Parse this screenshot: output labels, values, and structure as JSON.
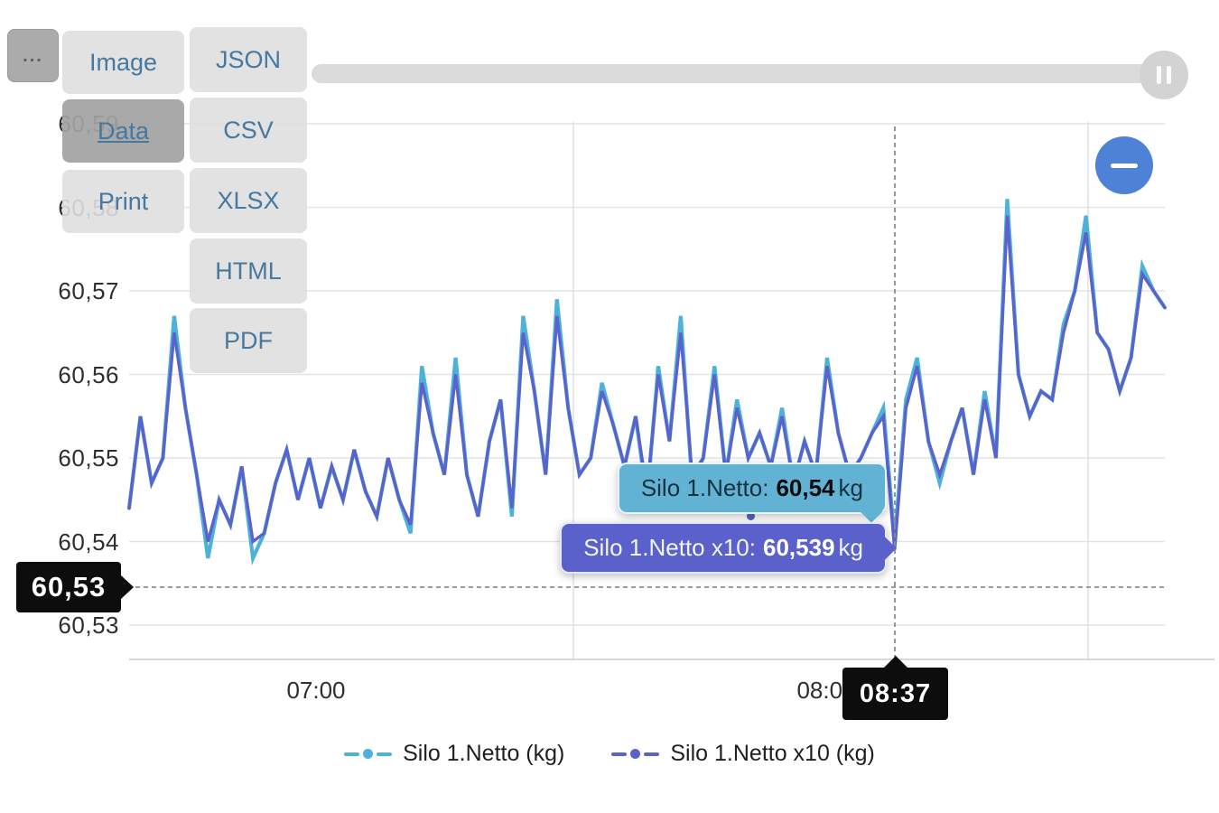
{
  "export_menu": {
    "toggle_label": "...",
    "primary": [
      {
        "label": "Image",
        "active": false
      },
      {
        "label": "Data",
        "active": true
      },
      {
        "label": "Print",
        "active": false
      }
    ],
    "secondary": [
      {
        "label": "JSON"
      },
      {
        "label": "CSV"
      },
      {
        "label": "XLSX"
      },
      {
        "label": "HTML"
      },
      {
        "label": "PDF"
      }
    ]
  },
  "scrollbar": {
    "handle_icon": "pause"
  },
  "zoom_button": {
    "icon": "minus"
  },
  "tooltips": {
    "series1": {
      "label": "Silo 1.Netto:",
      "value": "60,54",
      "unit": "kg",
      "bg": "#62b2d4"
    },
    "series2": {
      "label": "Silo 1.Netto x10:",
      "value": "60,539",
      "unit": "kg",
      "bg": "#5a61cb"
    }
  },
  "colors": {
    "series1": "#4db2d9",
    "series2": "#5a62cc",
    "zoom_button": "#4e82d6",
    "crosshair_label_bg": "#0d0d0d",
    "menu_text": "#47789f",
    "grid": "#e4e4e4",
    "axis_line": "#cccccc",
    "crosshair_line": "#8c8c8c"
  },
  "chart_data": {
    "type": "line",
    "title": "",
    "xlabel": "",
    "ylabel": "",
    "unit": "kg",
    "grid": true,
    "legend_position": "bottom",
    "ylim": [
      60.525,
      60.595
    ],
    "yticks": [
      "60,59",
      "60,58",
      "60,57",
      "60,56",
      "60,55",
      "60,54",
      "60,53"
    ],
    "ytick_values": [
      60.59,
      60.58,
      60.57,
      60.56,
      60.55,
      60.54,
      60.53
    ],
    "xticks": [
      "07:00",
      "08:00"
    ],
    "crosshair": {
      "time": "08:37",
      "y_label": "60,53",
      "point_index": 68
    },
    "series": [
      {
        "name": "Silo 1.Netto (kg)",
        "color": "#4db2d9",
        "values": [
          60.544,
          60.555,
          60.547,
          60.55,
          60.567,
          60.556,
          60.548,
          60.538,
          60.545,
          60.542,
          60.549,
          60.538,
          60.541,
          60.547,
          60.551,
          60.545,
          60.55,
          60.544,
          60.549,
          60.545,
          60.551,
          60.546,
          60.543,
          60.55,
          60.545,
          60.541,
          60.561,
          60.553,
          60.548,
          60.562,
          60.548,
          60.543,
          60.552,
          60.557,
          60.543,
          60.567,
          60.558,
          60.548,
          60.569,
          60.556,
          60.548,
          60.55,
          60.559,
          60.554,
          60.549,
          60.555,
          60.545,
          60.561,
          60.552,
          60.567,
          60.547,
          60.55,
          60.561,
          60.548,
          60.557,
          60.55,
          60.553,
          60.549,
          60.556,
          60.547,
          60.552,
          60.548,
          60.562,
          60.553,
          60.548,
          60.55,
          60.553,
          60.556,
          60.54,
          60.557,
          60.562,
          60.552,
          60.547,
          60.552,
          60.556,
          60.548,
          60.558,
          60.55,
          60.581,
          60.56,
          60.555,
          60.558,
          60.557,
          60.566,
          60.57,
          60.579,
          60.565,
          60.563,
          60.558,
          60.562,
          60.573,
          60.57,
          60.568
        ]
      },
      {
        "name": "Silo 1.Netto x10 (kg)",
        "color": "#5a62cc",
        "values": [
          60.544,
          60.555,
          60.547,
          60.55,
          60.565,
          60.556,
          60.548,
          60.54,
          60.545,
          60.542,
          60.549,
          60.54,
          60.541,
          60.547,
          60.551,
          60.545,
          60.55,
          60.544,
          60.549,
          60.545,
          60.551,
          60.546,
          60.543,
          60.55,
          60.545,
          60.542,
          60.559,
          60.553,
          60.548,
          60.56,
          60.548,
          60.543,
          60.552,
          60.557,
          60.544,
          60.565,
          60.558,
          60.548,
          60.567,
          60.556,
          60.548,
          60.55,
          60.558,
          60.554,
          60.549,
          60.555,
          60.546,
          60.56,
          60.552,
          60.565,
          60.548,
          60.55,
          60.56,
          60.548,
          60.556,
          60.55,
          60.553,
          60.549,
          60.555,
          60.547,
          60.552,
          60.548,
          60.561,
          60.553,
          60.548,
          60.55,
          60.553,
          60.555,
          60.539,
          60.556,
          60.561,
          60.552,
          60.548,
          60.552,
          60.556,
          60.548,
          60.557,
          60.55,
          60.579,
          60.56,
          60.555,
          60.558,
          60.557,
          60.565,
          60.57,
          60.577,
          60.565,
          60.563,
          60.558,
          60.562,
          60.572,
          60.57,
          60.568
        ]
      }
    ]
  }
}
